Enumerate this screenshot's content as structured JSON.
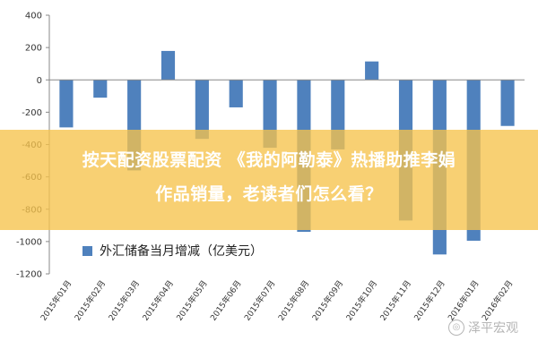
{
  "chart_data": {
    "type": "bar",
    "categories": [
      "2015年01月",
      "2015年02月",
      "2015年03月",
      "2015年04月",
      "2015年05月",
      "2015年06月",
      "2015年07月",
      "2015年08月",
      "2015年09月",
      "2015年10月",
      "2015年11月",
      "2015年12月",
      "2016年01月",
      "2016年02月"
    ],
    "series": [
      {
        "name": "外汇储备当月增减（亿美元）",
        "values": [
          -294,
          -110,
          -560,
          179,
          -365,
          -170,
          -420,
          -940,
          -430,
          114,
          -870,
          -1080,
          -995,
          -285
        ]
      }
    ],
    "ylim": [
      -1200,
      400
    ],
    "yticks": [
      400,
      200,
      0,
      -200,
      -400,
      -600,
      -800,
      -1000,
      -1200
    ],
    "grid": false,
    "legend": "bottom-left",
    "bar_color": "#4f81bd"
  },
  "overlay": {
    "line1": "按天配资股票配资 《我的阿勒泰》热播助推李娟",
    "line2": "作品销量，老读者们怎么看？",
    "color": "#f6c34b"
  },
  "legend": {
    "label": "外汇储备当月增减（亿美元）"
  },
  "watermark": {
    "text": "泽平宏观"
  }
}
